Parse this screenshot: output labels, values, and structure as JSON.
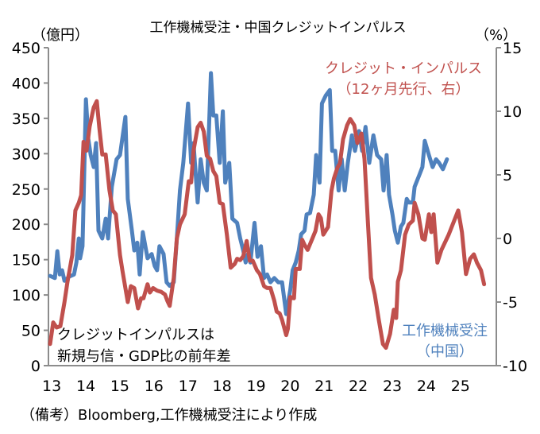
{
  "chart_data": {
    "type": "line",
    "title": "工作機械受注・中国クレジットインパルス",
    "ylabel_left": "（億円）",
    "ylabel_right": "（%）",
    "xlabel": "",
    "x_ticks": [
      "13",
      "14",
      "15",
      "16",
      "17",
      "18",
      "19",
      "20",
      "21",
      "22",
      "23",
      "24",
      "25"
    ],
    "xlim": [
      12.95,
      26.1
    ],
    "y_left": {
      "lim": [
        0,
        450
      ],
      "ticks": [
        0,
        50,
        100,
        150,
        200,
        250,
        300,
        350,
        400,
        450
      ]
    },
    "y_right": {
      "lim": [
        -10,
        15
      ],
      "ticks": [
        -10,
        -5,
        0,
        5,
        10,
        15
      ]
    },
    "grid": false,
    "series": [
      {
        "name": "工作機械受注（中国）",
        "label_lines": [
          "工作機械受注",
          "（中国）"
        ],
        "axis": "left",
        "color": "#4F81BD",
        "x": [
          13.0,
          13.14,
          13.21,
          13.28,
          13.35,
          13.42,
          13.56,
          13.7,
          13.77,
          13.84,
          13.88,
          13.95,
          14.05,
          14.12,
          14.19,
          14.28,
          14.35,
          14.42,
          14.53,
          14.63,
          14.7,
          14.81,
          14.95,
          15.05,
          15.21,
          15.28,
          15.4,
          15.47,
          15.56,
          15.63,
          15.72,
          15.86,
          15.98,
          16.07,
          16.14,
          16.21,
          16.33,
          16.42,
          16.51,
          16.63,
          16.72,
          16.81,
          16.91,
          17.05,
          17.14,
          17.21,
          17.33,
          17.42,
          17.51,
          17.6,
          17.72,
          17.79,
          17.88,
          17.98,
          18.07,
          18.14,
          18.26,
          18.35,
          18.49,
          18.58,
          18.67,
          18.74,
          18.81,
          18.88,
          19.0,
          19.09,
          19.19,
          19.28,
          19.37,
          19.47,
          19.58,
          19.7,
          19.81,
          19.93,
          20.05,
          20.12,
          20.21,
          20.3,
          20.37,
          20.47,
          20.53,
          20.63,
          20.74,
          20.81,
          20.91,
          20.98,
          21.09,
          21.21,
          21.28,
          21.37,
          21.47,
          21.56,
          21.65,
          21.74,
          21.86,
          21.95,
          22.07,
          22.16,
          22.26,
          22.37,
          22.49,
          22.6,
          22.72,
          22.79,
          22.88,
          22.95,
          23.05,
          23.12,
          23.21,
          23.3,
          23.37,
          23.47,
          23.53,
          23.65,
          23.7,
          23.84,
          23.93,
          24.0,
          24.12,
          24.23,
          24.33,
          24.42,
          24.53,
          24.65
        ],
        "y": [
          127,
          124,
          162,
          129,
          135,
          120,
          126,
          129,
          146,
          180,
          152,
          169,
          377,
          321,
          298,
          281,
          315,
          191,
          180,
          208,
          180,
          253,
          292,
          298,
          352,
          236,
          191,
          163,
          174,
          129,
          189,
          152,
          158,
          141,
          135,
          169,
          158,
          118,
          113,
          118,
          180,
          248,
          287,
          371,
          287,
          315,
          231,
          292,
          259,
          248,
          414,
          354,
          354,
          287,
          360,
          259,
          287,
          208,
          202,
          180,
          163,
          146,
          158,
          146,
          202,
          154,
          169,
          124,
          129,
          118,
          124,
          118,
          118,
          73,
          107,
          135,
          146,
          163,
          186,
          191,
          214,
          216,
          242,
          298,
          259,
          371,
          382,
          390,
          304,
          304,
          248,
          292,
          248,
          287,
          326,
          304,
          332,
          304,
          338,
          287,
          326,
          298,
          292,
          248,
          298,
          242,
          214,
          191,
          174,
          197,
          202,
          236,
          231,
          231,
          253,
          270,
          281,
          318,
          298,
          281,
          292,
          287,
          278,
          292
        ]
      },
      {
        "name": "クレジット・インパルス（12ヶ月先行、右）",
        "label_lines": [
          "クレジット・インパルス",
          "（12ヶ月先行、右）"
        ],
        "axis": "right",
        "color": "#C0504D",
        "x": [
          13.0,
          13.09,
          13.19,
          13.3,
          13.42,
          13.51,
          13.65,
          13.74,
          13.84,
          13.91,
          13.98,
          14.07,
          14.16,
          14.28,
          14.37,
          14.44,
          14.53,
          14.63,
          14.74,
          14.84,
          14.93,
          15.05,
          15.12,
          15.28,
          15.37,
          15.47,
          15.58,
          15.67,
          15.74,
          15.86,
          15.93,
          16.02,
          16.14,
          16.26,
          16.37,
          16.44,
          16.51,
          16.63,
          16.72,
          16.81,
          16.95,
          17.07,
          17.14,
          17.21,
          17.33,
          17.42,
          17.51,
          17.6,
          17.7,
          17.79,
          17.88,
          17.98,
          18.07,
          18.19,
          18.3,
          18.42,
          18.49,
          18.58,
          18.67,
          18.77,
          18.86,
          18.95,
          19.07,
          19.16,
          19.28,
          19.37,
          19.47,
          19.58,
          19.65,
          19.74,
          19.81,
          19.93,
          19.98,
          20.05,
          20.16,
          20.21,
          20.33,
          20.4,
          20.47,
          20.56,
          20.7,
          20.79,
          20.88,
          20.95,
          21.02,
          21.16,
          21.26,
          21.33,
          21.44,
          21.51,
          21.6,
          21.72,
          21.81,
          21.93,
          22.02,
          22.14,
          22.23,
          22.33,
          22.42,
          22.53,
          22.65,
          22.77,
          22.86,
          22.98,
          23.09,
          23.16,
          23.21,
          23.3,
          23.42,
          23.53,
          23.65,
          23.7,
          23.81,
          23.93,
          24.0,
          24.12,
          24.19,
          24.26,
          24.37,
          24.49,
          24.7,
          24.98,
          25.09,
          25.21,
          25.33,
          25.44,
          25.53,
          25.65,
          25.74
        ],
        "y": [
          -8.3,
          -6.6,
          -7.0,
          -6.9,
          -5.0,
          -3.4,
          -1.3,
          2.2,
          2.8,
          3.4,
          7.6,
          6.9,
          8.8,
          10.3,
          10.8,
          8.8,
          6.6,
          6.6,
          3.8,
          2.2,
          1.9,
          -1.3,
          -2.5,
          -5.0,
          -3.75,
          -3.9,
          -5.5,
          -4.7,
          -4.7,
          -3.6,
          -4.25,
          -3.9,
          -4.1,
          -4.2,
          -4.4,
          -4.9,
          -5.3,
          -3.1,
          0,
          1.1,
          1.9,
          4.5,
          4.4,
          6.9,
          8.75,
          9.1,
          8.4,
          6.5,
          6.25,
          5.3,
          4.9,
          2.8,
          2.7,
          0.3,
          -2.3,
          -2.0,
          -1.6,
          -1.7,
          -1.4,
          -0.2,
          -1.75,
          -1.75,
          -2.5,
          -2.8,
          -3.75,
          -3.9,
          -3.9,
          -4.9,
          -5.75,
          -5.9,
          -6.4,
          -7.6,
          -7.1,
          -4.6,
          -4.7,
          -2.4,
          -2.4,
          -0.1,
          -0.5,
          -0.9,
          0,
          0.6,
          1.9,
          1.6,
          0.3,
          0.9,
          3.75,
          4.7,
          5.6,
          5.9,
          7.8,
          8.9,
          9.4,
          8.9,
          7.5,
          8.25,
          6.25,
          1.25,
          -3.1,
          -4.4,
          -6.4,
          -8.3,
          -8.6,
          -7.5,
          -5.6,
          -6.25,
          -3.4,
          -2.5,
          0.3,
          1.1,
          1.4,
          2.8,
          1.9,
          0,
          -0.1,
          1.9,
          0.5,
          1.9,
          -1.9,
          -0.9,
          0.3,
          2.2,
          0.5,
          -2.8,
          -1.6,
          -1.25,
          -1.9,
          -2.5,
          -3.6
        ]
      }
    ],
    "annotation": [
      "クレジットインパルスは",
      "新規与信・GDP比の前年差"
    ],
    "source": "（備考）Bloomberg,工作機械受注により作成"
  }
}
